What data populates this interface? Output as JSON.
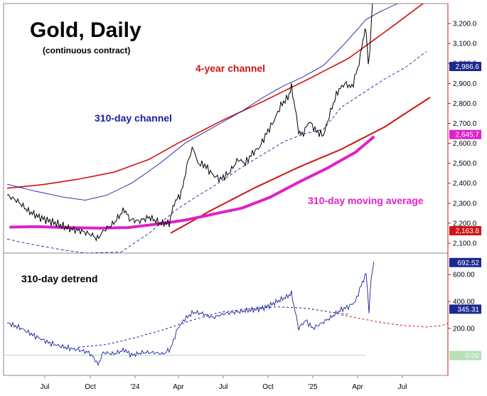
{
  "chart_data": {
    "type": "line",
    "title": "Gold, Daily",
    "subtitle": "(continuous contract)",
    "x_ticks": [
      "Jul",
      "Oct",
      "'24",
      "Apr",
      "Jul",
      "Oct",
      "'25",
      "Apr",
      "Jul"
    ],
    "colors": {
      "price": "#000000",
      "channel_310": "#1b1f9a",
      "channel_4yr": "#d01414",
      "moving_average": "#e020c8",
      "detrend": "#1b1f9a",
      "detrend_forecast": "#d01414",
      "tag_price": "#1b2a8e",
      "tag_ma": "#e020c8",
      "tag_red": "#d01414",
      "tag_zero": "#b7e0b7"
    },
    "panels": [
      {
        "name": "price",
        "ylim": [
          2050,
          3300
        ],
        "yticks": [
          "2,100.0",
          "2,200.0",
          "2,300.0",
          "2,400.0",
          "2,500.0",
          "2,600.0",
          "2,700.0",
          "2,800.0",
          "2,900.0",
          "3,000.0",
          "3,100.0",
          "3,200.0"
        ],
        "ytick_values": [
          2100,
          2200,
          2300,
          2400,
          2500,
          2600,
          2700,
          2800,
          2900,
          3000,
          3100,
          3200
        ],
        "annotations": [
          "4-year channel",
          "310-day channel",
          "310-day moving average"
        ],
        "value_tags": [
          {
            "label": "2,986.6",
            "value": 2986.6,
            "color": "#1b2a8e"
          },
          {
            "label": "2,645.7",
            "value": 2645.7,
            "color": "#e020c8"
          },
          {
            "label": "2,163.8",
            "value": 2163.8,
            "color": "#d01414"
          }
        ],
        "price_points": [
          [
            0,
            2340
          ],
          [
            15,
            2310
          ],
          [
            30,
            2260
          ],
          [
            45,
            2230
          ],
          [
            60,
            2210
          ],
          [
            75,
            2190
          ],
          [
            90,
            2170
          ],
          [
            105,
            2160
          ],
          [
            120,
            2140
          ],
          [
            127,
            2120
          ],
          [
            135,
            2160
          ],
          [
            150,
            2200
          ],
          [
            165,
            2270
          ],
          [
            172,
            2220
          ],
          [
            185,
            2210
          ],
          [
            200,
            2230
          ],
          [
            215,
            2200
          ],
          [
            228,
            2200
          ],
          [
            235,
            2300
          ],
          [
            245,
            2350
          ],
          [
            255,
            2520
          ],
          [
            262,
            2580
          ],
          [
            268,
            2500
          ],
          [
            278,
            2490
          ],
          [
            290,
            2440
          ],
          [
            300,
            2420
          ],
          [
            312,
            2450
          ],
          [
            325,
            2520
          ],
          [
            335,
            2500
          ],
          [
            345,
            2550
          ],
          [
            355,
            2580
          ],
          [
            365,
            2650
          ],
          [
            375,
            2710
          ],
          [
            385,
            2790
          ],
          [
            395,
            2830
          ],
          [
            400,
            2880
          ],
          [
            405,
            2780
          ],
          [
            410,
            2660
          ],
          [
            415,
            2640
          ],
          [
            425,
            2710
          ],
          [
            435,
            2660
          ],
          [
            445,
            2640
          ],
          [
            455,
            2760
          ],
          [
            465,
            2860
          ],
          [
            475,
            2900
          ],
          [
            485,
            2880
          ],
          [
            495,
            3000
          ],
          [
            502,
            3150
          ],
          [
            505,
            3160
          ],
          [
            508,
            3000
          ],
          [
            510,
            3050
          ],
          [
            514,
            3310
          ]
        ],
        "ma_points": [
          [
            5,
            2180
          ],
          [
            40,
            2183
          ],
          [
            80,
            2178
          ],
          [
            130,
            2175
          ],
          [
            170,
            2178
          ],
          [
            210,
            2195
          ],
          [
            250,
            2215
          ],
          [
            290,
            2245
          ],
          [
            330,
            2275
          ],
          [
            370,
            2330
          ],
          [
            410,
            2405
          ],
          [
            450,
            2475
          ],
          [
            490,
            2555
          ],
          [
            515,
            2630
          ]
        ],
        "channel_310": [
          [
            0,
            2395
          ],
          [
            40,
            2360
          ],
          [
            80,
            2330
          ],
          [
            110,
            2315
          ],
          [
            140,
            2340
          ],
          [
            175,
            2400
          ],
          [
            215,
            2500
          ],
          [
            250,
            2600
          ],
          [
            290,
            2680
          ],
          [
            330,
            2760
          ],
          [
            360,
            2830
          ],
          [
            390,
            2890
          ],
          [
            415,
            2930
          ],
          [
            445,
            2990
          ],
          [
            475,
            3100
          ],
          [
            505,
            3220
          ],
          [
            525,
            3260
          ],
          [
            555,
            3310
          ]
        ],
        "channel_310_lower": [
          [
            0,
            2120
          ],
          [
            40,
            2090
          ],
          [
            80,
            2065
          ],
          [
            110,
            2050
          ],
          [
            160,
            2055
          ],
          [
            200,
            2150
          ],
          [
            235,
            2260
          ],
          [
            265,
            2330
          ],
          [
            295,
            2395
          ],
          [
            330,
            2480
          ],
          [
            360,
            2545
          ],
          [
            390,
            2610
          ],
          [
            420,
            2650
          ],
          [
            445,
            2670
          ],
          [
            470,
            2780
          ],
          [
            500,
            2850
          ],
          [
            530,
            2920
          ],
          [
            560,
            2980
          ],
          [
            590,
            3060
          ]
        ],
        "channel_4yr_upper": [
          [
            0,
            2375
          ],
          [
            50,
            2393
          ],
          [
            100,
            2420
          ],
          [
            150,
            2455
          ],
          [
            200,
            2520
          ],
          [
            240,
            2600
          ],
          [
            300,
            2710
          ],
          [
            360,
            2810
          ],
          [
            420,
            2915
          ],
          [
            480,
            3025
          ],
          [
            540,
            3180
          ],
          [
            600,
            3340
          ]
        ],
        "channel_4yr_lower": [
          [
            230,
            2150
          ],
          [
            290,
            2270
          ],
          [
            350,
            2380
          ],
          [
            410,
            2480
          ],
          [
            470,
            2570
          ],
          [
            530,
            2680
          ],
          [
            595,
            2830
          ]
        ]
      },
      {
        "name": "detrend",
        "title": "310-day detrend",
        "ylim": [
          -150,
          760
        ],
        "yticks": [
          "200.00",
          "400.00",
          "600.00"
        ],
        "ytick_values": [
          200,
          400,
          600
        ],
        "value_tags": [
          {
            "label": "692.52",
            "value": 692.52,
            "color": "#1b2a8e"
          },
          {
            "label": "345.31",
            "value": 345.31,
            "color": "#1b2a8e"
          },
          {
            "label": "0.00",
            "value": 0,
            "color": "#b7e0b7"
          }
        ],
        "detrend_points": [
          [
            0,
            240
          ],
          [
            20,
            200
          ],
          [
            40,
            140
          ],
          [
            60,
            90
          ],
          [
            80,
            60
          ],
          [
            100,
            40
          ],
          [
            115,
            20
          ],
          [
            122,
            -20
          ],
          [
            128,
            -70
          ],
          [
            135,
            20
          ],
          [
            150,
            10
          ],
          [
            165,
            40
          ],
          [
            175,
            0
          ],
          [
            190,
            20
          ],
          [
            205,
            20
          ],
          [
            220,
            10
          ],
          [
            230,
            50
          ],
          [
            240,
            200
          ],
          [
            250,
            270
          ],
          [
            262,
            320
          ],
          [
            275,
            310
          ],
          [
            290,
            280
          ],
          [
            305,
            310
          ],
          [
            320,
            320
          ],
          [
            335,
            330
          ],
          [
            350,
            340
          ],
          [
            365,
            360
          ],
          [
            380,
            400
          ],
          [
            395,
            440
          ],
          [
            400,
            460
          ],
          [
            405,
            330
          ],
          [
            410,
            200
          ],
          [
            420,
            260
          ],
          [
            430,
            200
          ],
          [
            440,
            230
          ],
          [
            455,
            280
          ],
          [
            470,
            340
          ],
          [
            480,
            360
          ],
          [
            490,
            400
          ],
          [
            498,
            520
          ],
          [
            505,
            610
          ],
          [
            509,
            330
          ],
          [
            512,
            560
          ],
          [
            516,
            710
          ]
        ],
        "detrend_dashed": [
          [
            100,
            60
          ],
          [
            140,
            80
          ],
          [
            180,
            130
          ],
          [
            220,
            190
          ],
          [
            260,
            260
          ],
          [
            300,
            320
          ],
          [
            340,
            345
          ],
          [
            380,
            360
          ],
          [
            420,
            350
          ],
          [
            455,
            320
          ],
          [
            480,
            305
          ]
        ],
        "forecast_dashed": [
          [
            470,
            300
          ],
          [
            500,
            270
          ],
          [
            530,
            240
          ],
          [
            560,
            220
          ],
          [
            590,
            210
          ],
          [
            610,
            220
          ],
          [
            630,
            250
          ]
        ]
      }
    ]
  }
}
